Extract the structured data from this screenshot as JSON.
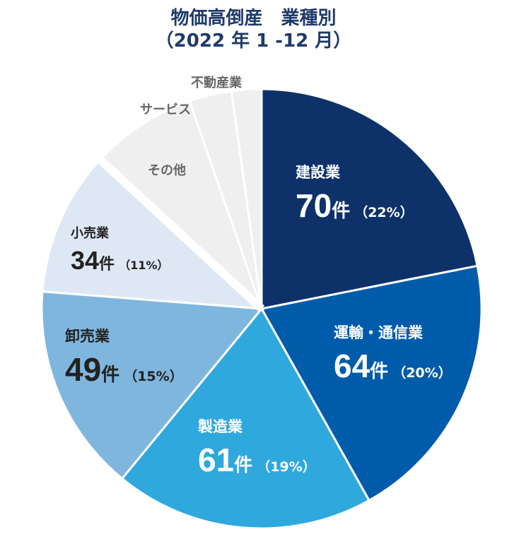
{
  "chart_data": {
    "type": "pie",
    "title": "物価高倒産　業種別",
    "subtitle": "（2022 年 1 -12 月）",
    "unit": "件",
    "slices": [
      {
        "name": "建設業",
        "value": 70,
        "pct": "22%",
        "color": "#0d3168"
      },
      {
        "name": "運輸・通信業",
        "value": 64,
        "pct": "20%",
        "color": "#005cab"
      },
      {
        "name": "製造業",
        "value": 61,
        "pct": "19%",
        "color": "#2fa8de"
      },
      {
        "name": "卸売業",
        "value": 49,
        "pct": "15%",
        "color": "#7fb6de"
      },
      {
        "name": "小売業",
        "value": 34,
        "pct": "11%",
        "color": "#dee8f4"
      },
      {
        "name": "その他",
        "value": 25,
        "color": "#efefef",
        "estimated": true
      },
      {
        "name": "サービス",
        "value": 10,
        "color": "#efefef",
        "estimated": true
      },
      {
        "name": "不動産業",
        "value": 7,
        "color": "#efefef",
        "estimated": true
      }
    ],
    "start_angle": "12 o'clock",
    "direction": "clockwise",
    "legend": "none"
  }
}
